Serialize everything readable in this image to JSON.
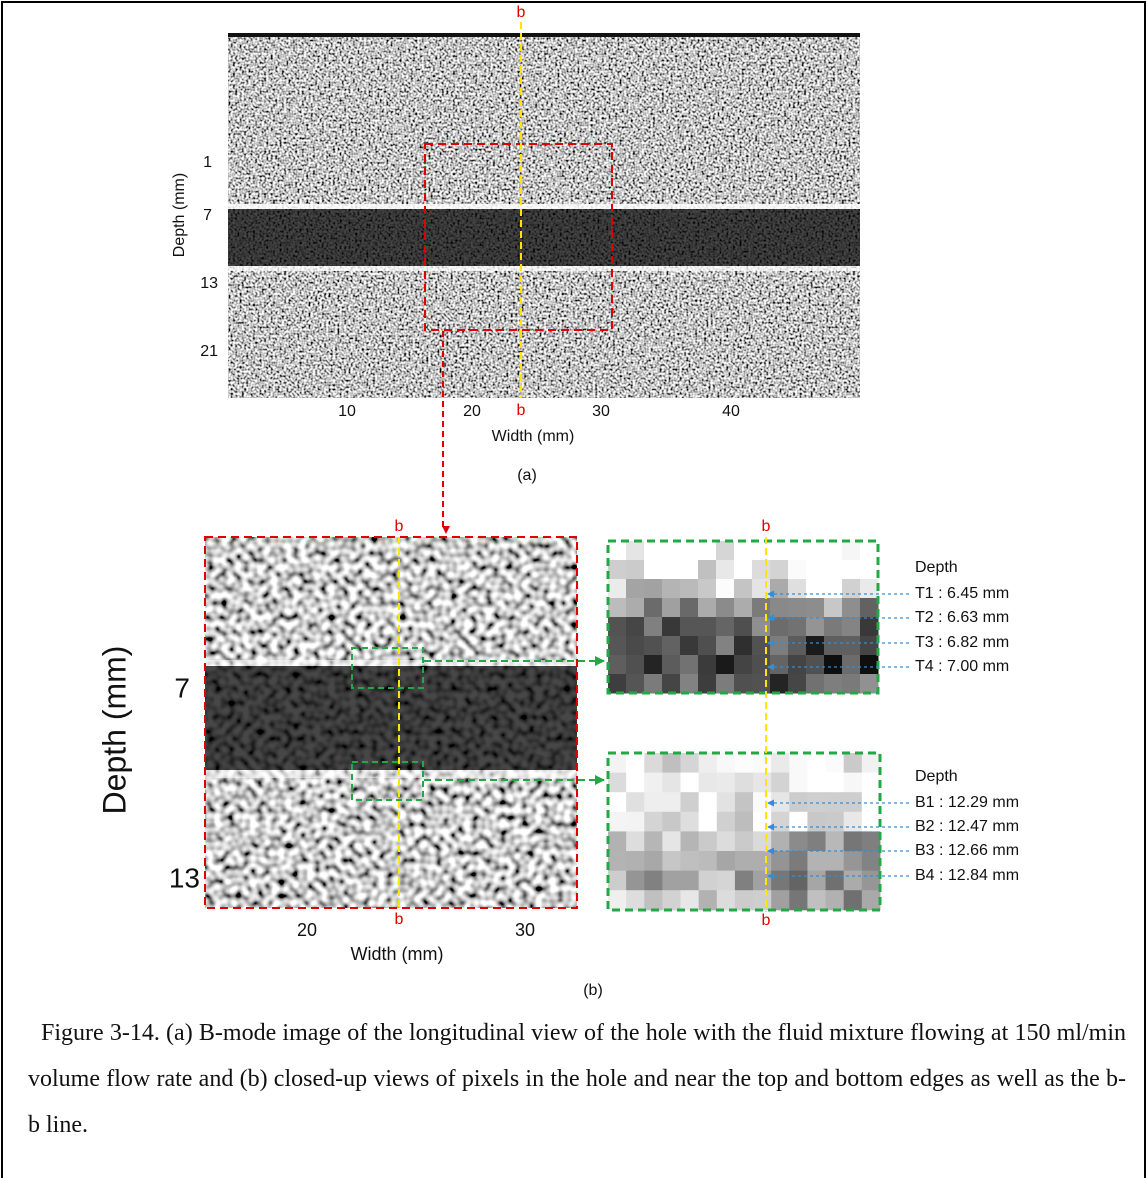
{
  "figure_a": {
    "b_top": "b",
    "b_bottom": "b",
    "y_label": "Depth (mm)",
    "y_ticks": [
      "1",
      "7",
      "13",
      "21"
    ],
    "x_ticks": [
      "10",
      "20",
      "30",
      "40"
    ],
    "x_label": "Width (mm)",
    "panel_label": "(a)"
  },
  "figure_b": {
    "b_top": "b",
    "b_bottom": "b",
    "y_label": "Depth (mm)",
    "y_ticks": [
      "7",
      "13"
    ],
    "x_ticks": [
      "20",
      "30"
    ],
    "x_label": "Width (mm)",
    "panel_label": "(b)",
    "zoom_top": {
      "b_top": "b",
      "heading": "Depth",
      "labels": [
        "T1 : 6.45 mm",
        "T2 : 6.63 mm",
        "T3 : 6.82 mm",
        "T4 : 7.00 mm"
      ]
    },
    "zoom_bottom": {
      "b_bottom": "b",
      "heading": "Depth",
      "labels": [
        "B1 : 12.29 mm",
        "B2 : 12.47 mm",
        "B3 : 12.66 mm",
        "B4 : 12.84 mm"
      ]
    }
  },
  "caption": "Figure 3-14. (a) B-mode image of the longitudinal view of the hole with the fluid mixture flowing at 150 ml/min volume flow rate and (b) closed-up views of pixels in the hole and near the top and bottom edges as well as the b-b line."
}
